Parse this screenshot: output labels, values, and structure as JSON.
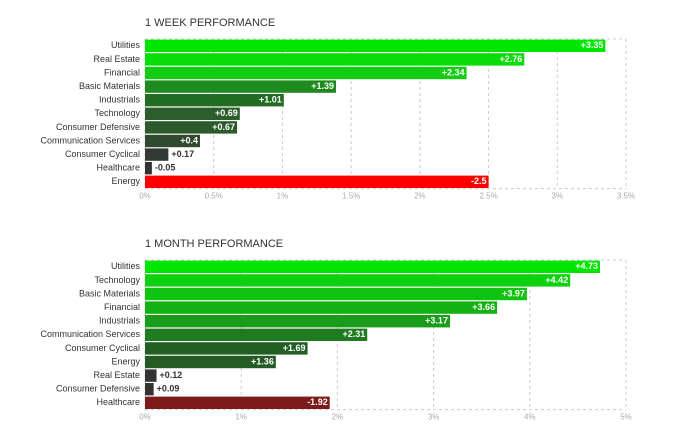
{
  "chart_data": [
    {
      "type": "barh",
      "title": "1 WEEK PERFORMANCE",
      "categories": [
        "Utilities",
        "Real Estate",
        "Financial",
        "Basic Materials",
        "Industrials",
        "Technology",
        "Consumer Defensive",
        "Communication Services",
        "Consumer Cyclical",
        "Healthcare",
        "Energy"
      ],
      "values": [
        3.35,
        2.76,
        2.34,
        1.39,
        1.01,
        0.69,
        0.67,
        0.4,
        0.17,
        -0.05,
        -2.5
      ],
      "value_labels": [
        "+3.35",
        "+2.76",
        "+2.34",
        "+1.39",
        "+1.01",
        "+0.69",
        "+0.67",
        "+0.4",
        "+0.17",
        "-0.05",
        "-2.5"
      ],
      "colors": [
        "#00e600",
        "#08dd08",
        "#12cc12",
        "#1f8a1f",
        "#236c23",
        "#2a5e2a",
        "#2b5a2b",
        "#2f4a2f",
        "#333a33",
        "#333333",
        "#ff0000"
      ],
      "xlim": [
        0,
        3.5
      ],
      "xticks": [
        {
          "value": 0,
          "label": "0%"
        },
        {
          "value": 0.5,
          "label": "0.5%"
        },
        {
          "value": 1,
          "label": "1%"
        },
        {
          "value": 1.5,
          "label": "1.5%"
        },
        {
          "value": 2,
          "label": "2%"
        },
        {
          "value": 2.5,
          "label": "2.5%"
        },
        {
          "value": 3,
          "label": "3%"
        },
        {
          "value": 3.5,
          "label": "3.5%"
        }
      ],
      "grid": true
    },
    {
      "type": "barh",
      "title": "1 MONTH PERFORMANCE",
      "categories": [
        "Utilities",
        "Technology",
        "Basic Materials",
        "Financial",
        "Industrials",
        "Communication Services",
        "Consumer Cyclical",
        "Energy",
        "Real Estate",
        "Consumer Defensive",
        "Healthcare"
      ],
      "values": [
        4.73,
        4.42,
        3.97,
        3.66,
        3.17,
        2.31,
        1.69,
        1.36,
        0.12,
        0.09,
        -1.92
      ],
      "value_labels": [
        "+4.73",
        "+4.42",
        "+3.97",
        "+3.66",
        "+3.17",
        "+2.31",
        "+1.69",
        "+1.36",
        "+0.12",
        "+0.09",
        "-1.92"
      ],
      "colors": [
        "#00e600",
        "#0ed00e",
        "#11c311",
        "#14b014",
        "#199c19",
        "#1f7b1f",
        "#225f22",
        "#245a24",
        "#333333",
        "#333333",
        "#7d1b1b"
      ],
      "xlim": [
        0,
        5
      ],
      "xticks": [
        {
          "value": 0,
          "label": "0%"
        },
        {
          "value": 1,
          "label": "1%"
        },
        {
          "value": 2,
          "label": "2%"
        },
        {
          "value": 3,
          "label": "3%"
        },
        {
          "value": 4,
          "label": "4%"
        },
        {
          "value": 5,
          "label": "5%"
        }
      ],
      "grid": true
    }
  ]
}
